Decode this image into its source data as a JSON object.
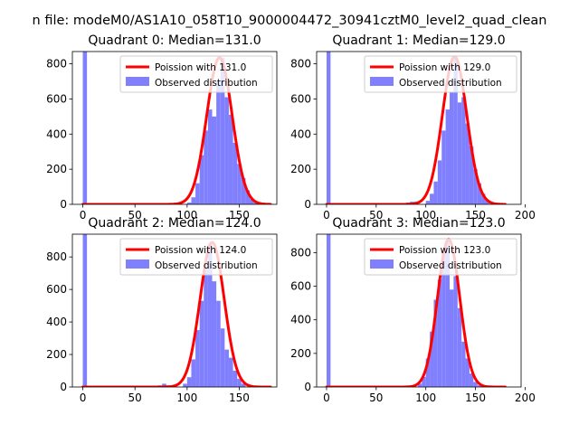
{
  "figure": {
    "suptitle": "n file: modeM0/AS1A10_058T10_9000004472_30941cztM0_level2_quad_clean"
  },
  "colors": {
    "fit_line": "#ff0000",
    "bars": "#8080ff",
    "axis": "#000000",
    "legend_border": "#cccccc"
  },
  "chart_data": [
    {
      "type": "bar",
      "title": "Quadrant 0: Median=131.0",
      "median": 131.0,
      "xlim": [
        -10,
        186
      ],
      "ylim": [
        0,
        870
      ],
      "xticks": [
        0,
        50,
        100,
        150
      ],
      "yticks": [
        0,
        200,
        400,
        600,
        800
      ],
      "fit_label": "Poission with 131.0",
      "hist_label": "Observed distribution",
      "zero_bin": 870,
      "fit_peak": 835,
      "fit_sigma": 12.2,
      "bin_width": 4,
      "bins": [
        {
          "x": 100,
          "y": 10
        },
        {
          "x": 104,
          "y": 40
        },
        {
          "x": 108,
          "y": 120
        },
        {
          "x": 112,
          "y": 280
        },
        {
          "x": 116,
          "y": 420
        },
        {
          "x": 120,
          "y": 540
        },
        {
          "x": 124,
          "y": 500
        },
        {
          "x": 128,
          "y": 700
        },
        {
          "x": 132,
          "y": 835
        },
        {
          "x": 136,
          "y": 610
        },
        {
          "x": 140,
          "y": 510
        },
        {
          "x": 144,
          "y": 350
        },
        {
          "x": 148,
          "y": 230
        },
        {
          "x": 152,
          "y": 150
        },
        {
          "x": 156,
          "y": 80
        },
        {
          "x": 160,
          "y": 30
        },
        {
          "x": 164,
          "y": 10
        }
      ]
    },
    {
      "type": "bar",
      "title": "Quadrant 1: Median=129.0",
      "median": 129.0,
      "xlim": [
        -10,
        196
      ],
      "ylim": [
        0,
        870
      ],
      "xticks": [
        0,
        50,
        100,
        150,
        200
      ],
      "yticks": [
        0,
        200,
        400,
        600,
        800
      ],
      "fit_label": "Poission with 129.0",
      "hist_label": "Observed distribution",
      "zero_bin": 870,
      "fit_peak": 840,
      "fit_sigma": 12.3,
      "bin_width": 4,
      "bins": [
        {
          "x": 76,
          "y": 5
        },
        {
          "x": 80,
          "y": 10
        },
        {
          "x": 84,
          "y": 15
        },
        {
          "x": 88,
          "y": 15
        },
        {
          "x": 100,
          "y": 20
        },
        {
          "x": 104,
          "y": 60
        },
        {
          "x": 108,
          "y": 130
        },
        {
          "x": 112,
          "y": 250
        },
        {
          "x": 116,
          "y": 420
        },
        {
          "x": 120,
          "y": 540
        },
        {
          "x": 124,
          "y": 640
        },
        {
          "x": 128,
          "y": 835
        },
        {
          "x": 132,
          "y": 580
        },
        {
          "x": 136,
          "y": 610
        },
        {
          "x": 140,
          "y": 460
        },
        {
          "x": 144,
          "y": 330
        },
        {
          "x": 148,
          "y": 200
        },
        {
          "x": 152,
          "y": 120
        },
        {
          "x": 156,
          "y": 60
        },
        {
          "x": 160,
          "y": 20
        }
      ]
    },
    {
      "type": "bar",
      "title": "Quadrant 2: Median=124.0",
      "median": 124.0,
      "xlim": [
        -10,
        186
      ],
      "ylim": [
        0,
        940
      ],
      "xticks": [
        0,
        50,
        100,
        150
      ],
      "yticks": [
        0,
        200,
        400,
        600,
        800
      ],
      "fit_label": "Poission with 124.0",
      "hist_label": "Observed distribution",
      "zero_bin": 940,
      "fit_peak": 890,
      "fit_sigma": 11.6,
      "bin_width": 4,
      "bins": [
        {
          "x": 72,
          "y": 10
        },
        {
          "x": 76,
          "y": 20
        },
        {
          "x": 80,
          "y": 10
        },
        {
          "x": 96,
          "y": 20
        },
        {
          "x": 100,
          "y": 60
        },
        {
          "x": 104,
          "y": 170
        },
        {
          "x": 108,
          "y": 350
        },
        {
          "x": 112,
          "y": 530
        },
        {
          "x": 116,
          "y": 730
        },
        {
          "x": 120,
          "y": 880
        },
        {
          "x": 124,
          "y": 650
        },
        {
          "x": 128,
          "y": 530
        },
        {
          "x": 132,
          "y": 360
        },
        {
          "x": 136,
          "y": 230
        },
        {
          "x": 140,
          "y": 180
        },
        {
          "x": 144,
          "y": 100
        },
        {
          "x": 148,
          "y": 50
        },
        {
          "x": 152,
          "y": 20
        }
      ]
    },
    {
      "type": "bar",
      "title": "Quadrant 3: Median=123.0",
      "median": 123.0,
      "xlim": [
        -10,
        196
      ],
      "ylim": [
        0,
        910
      ],
      "xticks": [
        0,
        50,
        100,
        150,
        200
      ],
      "yticks": [
        0,
        200,
        400,
        600,
        800
      ],
      "fit_label": "Poission with 123.0",
      "hist_label": "Observed distribution",
      "zero_bin": 910,
      "fit_peak": 880,
      "fit_sigma": 11.2,
      "bin_width": 4,
      "bins": [
        {
          "x": 92,
          "y": 20
        },
        {
          "x": 96,
          "y": 60
        },
        {
          "x": 100,
          "y": 170
        },
        {
          "x": 104,
          "y": 330
        },
        {
          "x": 108,
          "y": 520
        },
        {
          "x": 112,
          "y": 640
        },
        {
          "x": 116,
          "y": 810
        },
        {
          "x": 120,
          "y": 870
        },
        {
          "x": 124,
          "y": 580
        },
        {
          "x": 128,
          "y": 660
        },
        {
          "x": 132,
          "y": 470
        },
        {
          "x": 136,
          "y": 270
        },
        {
          "x": 140,
          "y": 170
        },
        {
          "x": 144,
          "y": 80
        },
        {
          "x": 148,
          "y": 30
        },
        {
          "x": 152,
          "y": 10
        }
      ]
    }
  ]
}
